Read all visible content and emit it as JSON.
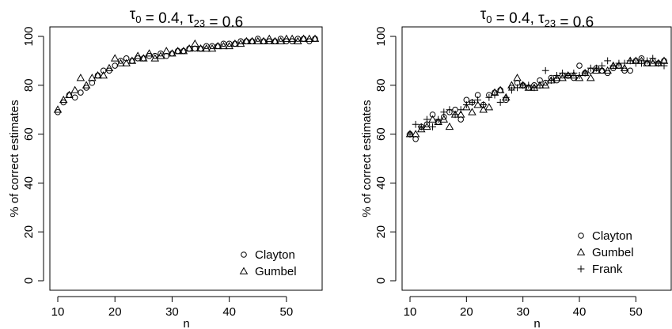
{
  "chart_data": [
    {
      "type": "scatter",
      "title": "τ0 = 0.4, τ23 = 0.6",
      "xlabel": "n",
      "ylabel": "% of correct estimates",
      "xlim": [
        10,
        55
      ],
      "ylim": [
        0,
        100
      ],
      "xticks": [
        10,
        20,
        30,
        40,
        50
      ],
      "yticks": [
        0,
        20,
        40,
        60,
        80,
        100
      ],
      "legend_position": "bottom-right",
      "series": [
        {
          "name": "Clayton",
          "marker": "circle",
          "x": [
            10,
            11,
            12,
            13,
            14,
            15,
            16,
            17,
            18,
            19,
            20,
            21,
            22,
            23,
            24,
            25,
            26,
            27,
            28,
            29,
            30,
            31,
            32,
            33,
            34,
            35,
            36,
            37,
            38,
            39,
            40,
            41,
            42,
            43,
            44,
            45,
            46,
            47,
            48,
            49,
            50,
            51,
            52,
            53,
            54,
            55
          ],
          "y": [
            69,
            73,
            76,
            75,
            77,
            79,
            81,
            84,
            86,
            86,
            88,
            90,
            91,
            90,
            91,
            91,
            92,
            92,
            93,
            92,
            93,
            94,
            94,
            95,
            95,
            95,
            96,
            96,
            96,
            97,
            97,
            97,
            98,
            98,
            98,
            99,
            98,
            98,
            98,
            99,
            98,
            98,
            99,
            99,
            98,
            99
          ]
        },
        {
          "name": "Gumbel",
          "marker": "triangle",
          "x": [
            10,
            11,
            12,
            13,
            14,
            15,
            16,
            17,
            18,
            19,
            20,
            21,
            22,
            23,
            24,
            25,
            26,
            27,
            28,
            29,
            30,
            31,
            32,
            33,
            34,
            35,
            36,
            37,
            38,
            39,
            40,
            41,
            42,
            43,
            44,
            45,
            46,
            47,
            48,
            49,
            50,
            51,
            52,
            53,
            54,
            55
          ],
          "y": [
            70,
            74,
            76,
            78,
            83,
            80,
            83,
            84,
            84,
            87,
            91,
            89,
            89,
            90,
            92,
            91,
            93,
            91,
            92,
            94,
            93,
            94,
            94,
            95,
            97,
            95,
            95,
            95,
            96,
            96,
            96,
            97,
            97,
            98,
            98,
            98,
            98,
            99,
            98,
            98,
            99,
            99,
            98,
            99,
            99,
            99
          ]
        }
      ]
    },
    {
      "type": "scatter",
      "title": "τ0 = 0.4, τ23 = 0.6",
      "xlabel": "n",
      "ylabel": "% of correct estimates",
      "xlim": [
        10,
        55
      ],
      "ylim": [
        0,
        100
      ],
      "xticks": [
        10,
        20,
        30,
        40,
        50
      ],
      "yticks": [
        0,
        20,
        40,
        60,
        80,
        100
      ],
      "legend_position": "bottom-right",
      "series": [
        {
          "name": "Clayton",
          "marker": "circle",
          "x": [
            10,
            11,
            12,
            13,
            14,
            15,
            16,
            17,
            18,
            19,
            20,
            21,
            22,
            23,
            24,
            25,
            26,
            27,
            28,
            29,
            30,
            31,
            32,
            33,
            34,
            35,
            36,
            37,
            38,
            39,
            40,
            41,
            42,
            43,
            44,
            45,
            46,
            47,
            48,
            49,
            50,
            51,
            52,
            53,
            54,
            55
          ],
          "y": [
            60,
            58,
            63,
            64,
            68,
            65,
            67,
            69,
            70,
            66,
            74,
            73,
            76,
            72,
            76,
            77,
            78,
            74,
            79,
            81,
            80,
            79,
            80,
            82,
            81,
            83,
            82,
            84,
            84,
            83,
            88,
            85,
            86,
            87,
            86,
            85,
            87,
            88,
            86,
            86,
            90,
            91,
            89,
            90,
            89,
            90
          ]
        },
        {
          "name": "Gumbel",
          "marker": "triangle",
          "x": [
            10,
            11,
            12,
            13,
            14,
            15,
            16,
            17,
            18,
            19,
            20,
            21,
            22,
            23,
            24,
            25,
            26,
            27,
            28,
            29,
            30,
            31,
            32,
            33,
            34,
            35,
            36,
            37,
            38,
            39,
            40,
            41,
            42,
            43,
            44,
            45,
            46,
            47,
            48,
            49,
            50,
            51,
            52,
            53,
            54,
            55
          ],
          "y": [
            60,
            60,
            62,
            63,
            66,
            65,
            66,
            63,
            68,
            68,
            71,
            69,
            72,
            70,
            71,
            77,
            78,
            75,
            80,
            83,
            80,
            79,
            79,
            80,
            80,
            82,
            83,
            83,
            84,
            84,
            83,
            85,
            83,
            86,
            86,
            86,
            88,
            88,
            87,
            90,
            90,
            90,
            89,
            89,
            89,
            90
          ]
        },
        {
          "name": "Frank",
          "marker": "plus",
          "x": [
            10,
            11,
            12,
            13,
            14,
            15,
            16,
            17,
            18,
            19,
            20,
            21,
            22,
            23,
            24,
            25,
            26,
            27,
            28,
            29,
            30,
            31,
            32,
            33,
            34,
            35,
            36,
            37,
            38,
            39,
            40,
            41,
            42,
            43,
            44,
            45,
            46,
            47,
            48,
            49,
            50,
            51,
            52,
            53,
            54,
            55
          ],
          "y": [
            60,
            64,
            63,
            66,
            63,
            66,
            69,
            70,
            68,
            70,
            72,
            73,
            74,
            72,
            75,
            76,
            73,
            75,
            78,
            79,
            80,
            80,
            79,
            80,
            86,
            82,
            84,
            85,
            84,
            85,
            84,
            85,
            87,
            87,
            88,
            90,
            88,
            89,
            89,
            90,
            89,
            89,
            90,
            91,
            89,
            88
          ]
        }
      ]
    }
  ]
}
